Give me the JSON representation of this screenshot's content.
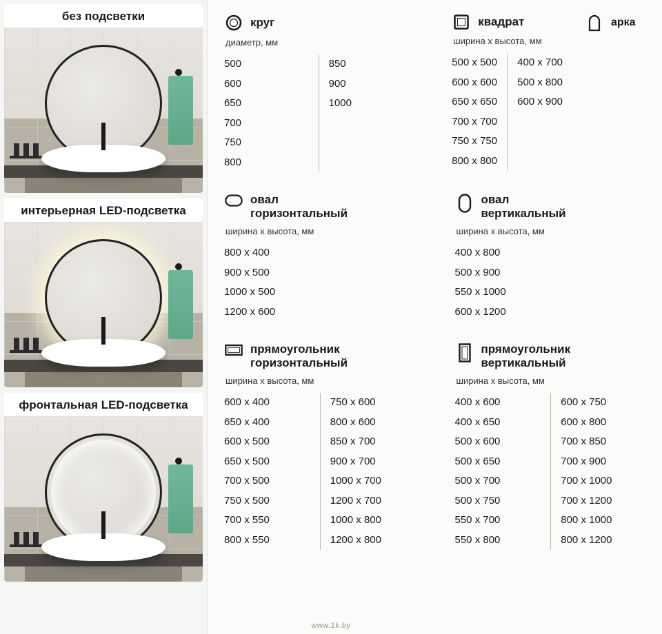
{
  "left": {
    "cards": [
      {
        "title": "без подсветки",
        "variant": "plain"
      },
      {
        "title": "интерьерная LED-подсветка",
        "variant": "glow"
      },
      {
        "title": "фронтальная LED-подсветка",
        "variant": "front"
      }
    ]
  },
  "colors": {
    "text": "#1a1a1a",
    "bg": "#f5f5f3",
    "panel_bg": "#fbfbf9",
    "divider": "#bdbab3",
    "towel": "#6fb89a",
    "wall": "#e6e4de",
    "counter": "#4a4742"
  },
  "shapes": {
    "circle": {
      "title": "круг",
      "dim_label": "диаметр, мм",
      "col1": [
        "500",
        "600",
        "650",
        "700",
        "750",
        "800"
      ],
      "col2": [
        "850",
        "900",
        "1000"
      ]
    },
    "square": {
      "title": "квадрат",
      "dim_label": "ширина х высота, мм",
      "sizes": [
        "500 х 500",
        "600 х 600",
        "650 х 650",
        "700 х 700",
        "750 х 750",
        "800 х 800"
      ]
    },
    "arch": {
      "title": "арка",
      "sizes": [
        "400 x 700",
        "500 x 800",
        "600 x 900"
      ]
    },
    "oval_h": {
      "title_l1": "овал",
      "title_l2": "горизонтальный",
      "dim_label": "ширина х высота, мм",
      "sizes": [
        "800 х 400",
        "900 х 500",
        "1000 х 500",
        "1200 х 600"
      ]
    },
    "oval_v": {
      "title_l1": "овал",
      "title_l2": "вертикальный",
      "dim_label": "ширина х высота, мм",
      "sizes": [
        "400 х 800",
        "500 х 900",
        "550 х 1000",
        "600 х 1200"
      ]
    },
    "rect_h": {
      "title_l1": "прямоугольник",
      "title_l2": "горизонтальный",
      "dim_label": "ширина х высота, мм",
      "col1": [
        "600 х 400",
        "650 х 400",
        "600 х 500",
        "650 х 500",
        "700 х 500",
        "750 х 500",
        "700 х 550",
        "800 х 550"
      ],
      "col2": [
        "750 х 600",
        "800 х 600",
        "850 х 700",
        "900 х 700",
        "1000 х 700",
        "1200 х 700",
        "1000 х 800",
        "1200 х 800"
      ]
    },
    "rect_v": {
      "title_l1": "прямоугольник",
      "title_l2": "вертикальный",
      "dim_label": "ширина х высота, мм",
      "col1": [
        "400 х 600",
        "400 х 650",
        "500 х 600",
        "500 х 650",
        "500 х 700",
        "500 х 750",
        "550 х 700",
        "550 х 800"
      ],
      "col2": [
        "600 х 750",
        "600 х 800",
        "700 х 850",
        "700 х 900",
        "700 х 1000",
        "700 х 1200",
        "800 х 1000",
        "800 х 1200"
      ]
    }
  },
  "watermark": "www.1k.by"
}
